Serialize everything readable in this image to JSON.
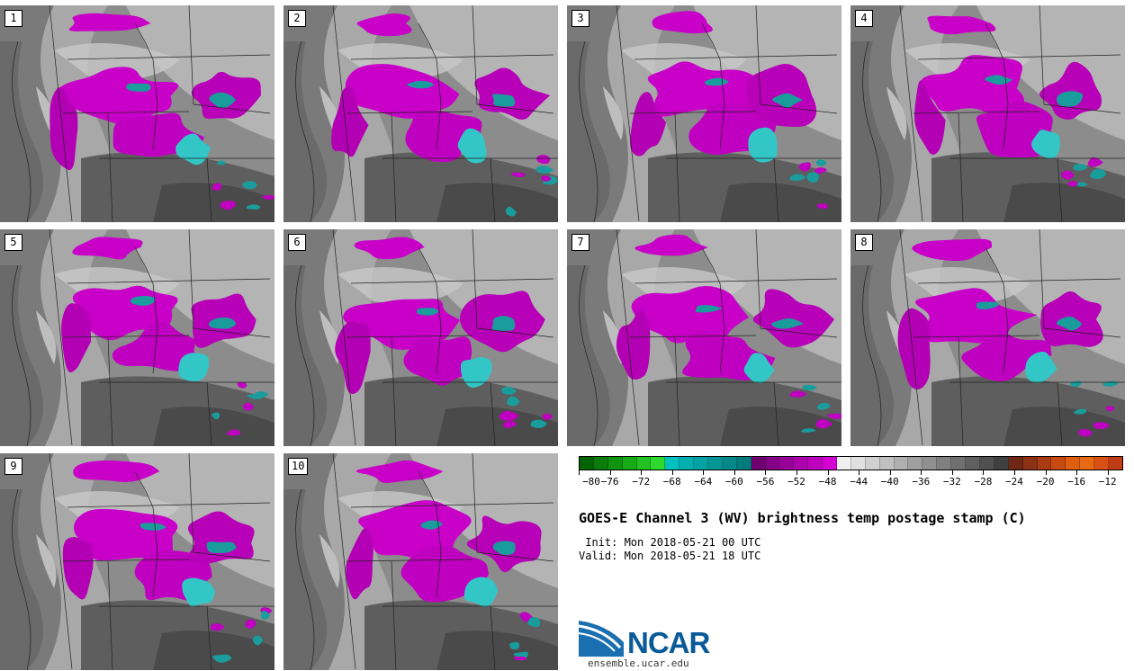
{
  "figure": {
    "title": "GOES-E Channel 3 (WV) brightness temp postage stamp (C)",
    "init": " Init: Mon 2018-05-21 00 UTC",
    "valid": "Valid: Mon 2018-05-21 18 UTC",
    "logo_text": "NCAR",
    "website": "ensemble.ucar.edu"
  },
  "panels": [
    {
      "label": "1"
    },
    {
      "label": "2"
    },
    {
      "label": "3"
    },
    {
      "label": "4"
    },
    {
      "label": "5"
    },
    {
      "label": "6"
    },
    {
      "label": "7"
    },
    {
      "label": "8"
    },
    {
      "label": "9"
    },
    {
      "label": "10"
    }
  ],
  "colorbar": {
    "colors": [
      "#006400",
      "#0a7d0a",
      "#109410",
      "#18ab18",
      "#22c222",
      "#2ed82e",
      "#00c0c0",
      "#00b0b0",
      "#00a3a3",
      "#009696",
      "#008888",
      "#007b7b",
      "#700070",
      "#840084",
      "#980098",
      "#ac00ac",
      "#c000c0",
      "#d400d4",
      "#f0f0f0",
      "#e0e0e0",
      "#d0d0d0",
      "#c0c0c0",
      "#b0b0b0",
      "#a0a0a0",
      "#909090",
      "#808080",
      "#707070",
      "#606060",
      "#505050",
      "#404040",
      "#6e2814",
      "#8c3214",
      "#aa3c14",
      "#c84a12",
      "#e05e10",
      "#e86a14",
      "#d85014",
      "#c03c14"
    ],
    "tick_labels": [
      "−80",
      "−76",
      "−72",
      "−68",
      "−64",
      "−60",
      "−56",
      "−52",
      "−48",
      "−44",
      "−40",
      "−36",
      "−32",
      "−28",
      "−24",
      "−20",
      "−16",
      "−12"
    ],
    "min": -80,
    "max": -10
  }
}
